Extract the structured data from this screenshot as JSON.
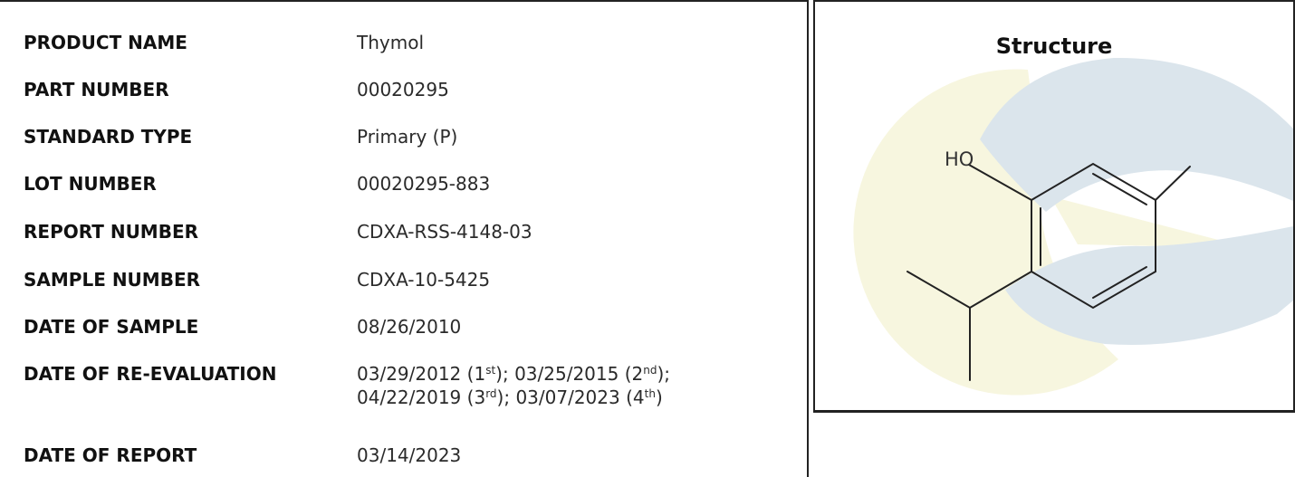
{
  "report_fields": [
    {
      "label": "PRODUCT NAME",
      "value": "Thymol"
    },
    {
      "label": "PART NUMBER",
      "value": "00020295"
    },
    {
      "label": "STANDARD TYPE",
      "value": "Primary (P)"
    },
    {
      "label": "LOT NUMBER",
      "value": "00020295-883"
    },
    {
      "label": "REPORT NUMBER",
      "value": "CDXA-RSS-4148-03"
    },
    {
      "label": "SAMPLE NUMBER",
      "value": "CDXA-10-5425"
    },
    {
      "label": "DATE OF SAMPLE",
      "value": "08/26/2010"
    }
  ],
  "reevaluation": {
    "label": "DATE OF RE-EVALUATION",
    "entries": [
      {
        "date": "03/29/2012",
        "ordinal": "1",
        "suffix": "st"
      },
      {
        "date": "03/25/2015",
        "ordinal": "2",
        "suffix": "nd"
      },
      {
        "date": "04/22/2019",
        "ordinal": "3",
        "suffix": "rd"
      },
      {
        "date": "03/07/2023",
        "ordinal": "4",
        "suffix": "th"
      }
    ]
  },
  "report_date": {
    "label": "DATE OF REPORT",
    "value": "03/14/2023"
  },
  "structure": {
    "title": "Structure",
    "hydroxyl_label": "HO",
    "watermark_colors": {
      "blue": "#dbe5ec",
      "yellow": "#f7f6df"
    },
    "bond_color": "#222222"
  }
}
